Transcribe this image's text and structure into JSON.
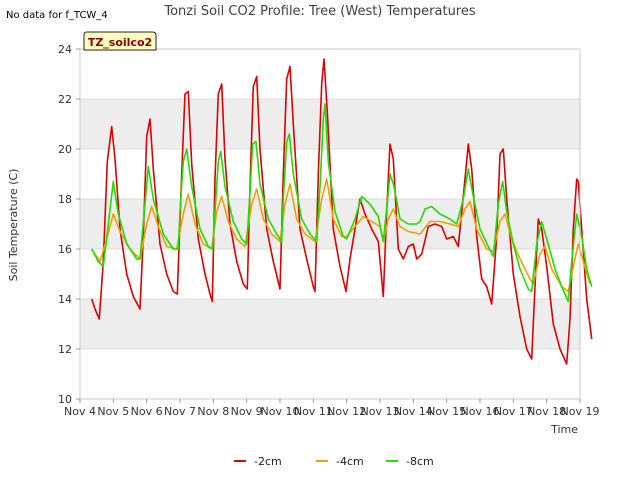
{
  "header": {
    "no_data": "No data for f_TCW_4",
    "badge": "TZ_soilco2"
  },
  "colors": {
    "band": "#ededed",
    "grid": "#dcdcdc",
    "axis": "#c8c8c8",
    "badge_fill": "#ffffc0",
    "badge_text": "#8b0000"
  },
  "chart_data": {
    "type": "line",
    "title": "Tonzi Soil CO2 Profile: Tree (West) Temperatures",
    "xlabel": "Time",
    "ylabel": "Soil Temperature (C)",
    "ylim": [
      10,
      24
    ],
    "yticks": [
      10,
      12,
      14,
      16,
      18,
      20,
      22,
      24
    ],
    "xlim": [
      4,
      19
    ],
    "xticks": [
      {
        "v": 4,
        "label": "Nov 4"
      },
      {
        "v": 5,
        "label": "Nov 5"
      },
      {
        "v": 6,
        "label": "Nov 6"
      },
      {
        "v": 7,
        "label": "Nov 7"
      },
      {
        "v": 8,
        "label": "Nov 8"
      },
      {
        "v": 9,
        "label": "Nov 9"
      },
      {
        "v": 10,
        "label": "Nov 10"
      },
      {
        "v": 11,
        "label": "Nov 11"
      },
      {
        "v": 12,
        "label": "Nov 12"
      },
      {
        "v": 13,
        "label": "Nov 13"
      },
      {
        "v": 14,
        "label": "Nov 14"
      },
      {
        "v": 15,
        "label": "Nov 15"
      },
      {
        "v": 16,
        "label": "Nov 16"
      },
      {
        "v": 17,
        "label": "Nov 17"
      },
      {
        "v": 18,
        "label": "Nov 18"
      },
      {
        "v": 19,
        "label": "Nov 19"
      }
    ],
    "grid": true,
    "legend": "bottom-center",
    "series": [
      {
        "name": "-2cm",
        "color": "#dd0000",
        "points": [
          [
            4.35,
            14.0
          ],
          [
            4.45,
            13.6
          ],
          [
            4.58,
            13.2
          ],
          [
            4.7,
            15.5
          ],
          [
            4.82,
            19.5
          ],
          [
            4.95,
            20.9
          ],
          [
            5.05,
            19.6
          ],
          [
            5.2,
            16.8
          ],
          [
            5.4,
            15.0
          ],
          [
            5.6,
            14.1
          ],
          [
            5.8,
            13.6
          ],
          [
            5.9,
            16.5
          ],
          [
            6.0,
            20.5
          ],
          [
            6.1,
            21.2
          ],
          [
            6.2,
            19.2
          ],
          [
            6.4,
            16.2
          ],
          [
            6.6,
            15.0
          ],
          [
            6.8,
            14.3
          ],
          [
            6.92,
            14.2
          ],
          [
            7.05,
            19.0
          ],
          [
            7.15,
            22.2
          ],
          [
            7.25,
            22.3
          ],
          [
            7.35,
            19.4
          ],
          [
            7.55,
            16.4
          ],
          [
            7.75,
            15.0
          ],
          [
            7.9,
            14.2
          ],
          [
            7.97,
            13.9
          ],
          [
            8.05,
            18.8
          ],
          [
            8.15,
            22.2
          ],
          [
            8.25,
            22.6
          ],
          [
            8.35,
            19.6
          ],
          [
            8.5,
            17.0
          ],
          [
            8.7,
            15.5
          ],
          [
            8.9,
            14.6
          ],
          [
            9.02,
            14.4
          ],
          [
            9.1,
            18.5
          ],
          [
            9.2,
            22.5
          ],
          [
            9.3,
            22.9
          ],
          [
            9.4,
            20.0
          ],
          [
            9.6,
            16.8
          ],
          [
            9.8,
            15.5
          ],
          [
            10.0,
            14.4
          ],
          [
            10.1,
            19.0
          ],
          [
            10.2,
            22.8
          ],
          [
            10.3,
            23.3
          ],
          [
            10.4,
            21.0
          ],
          [
            10.6,
            16.8
          ],
          [
            10.8,
            15.6
          ],
          [
            11.0,
            14.5
          ],
          [
            11.05,
            14.3
          ],
          [
            11.15,
            19.0
          ],
          [
            11.25,
            22.6
          ],
          [
            11.32,
            23.6
          ],
          [
            11.42,
            21.5
          ],
          [
            11.6,
            16.8
          ],
          [
            11.8,
            15.3
          ],
          [
            11.98,
            14.3
          ],
          [
            12.1,
            15.6
          ],
          [
            12.25,
            16.8
          ],
          [
            12.4,
            18.0
          ],
          [
            12.55,
            17.4
          ],
          [
            12.75,
            16.8
          ],
          [
            12.95,
            16.3
          ],
          [
            13.1,
            14.1
          ],
          [
            13.2,
            17.5
          ],
          [
            13.3,
            20.2
          ],
          [
            13.4,
            19.6
          ],
          [
            13.55,
            16.0
          ],
          [
            13.7,
            15.6
          ],
          [
            13.85,
            16.1
          ],
          [
            14.0,
            16.2
          ],
          [
            14.1,
            15.6
          ],
          [
            14.25,
            15.8
          ],
          [
            14.45,
            16.9
          ],
          [
            14.65,
            17.0
          ],
          [
            14.85,
            16.9
          ],
          [
            15.0,
            16.4
          ],
          [
            15.2,
            16.5
          ],
          [
            15.35,
            16.1
          ],
          [
            15.55,
            18.8
          ],
          [
            15.65,
            20.2
          ],
          [
            15.75,
            19.2
          ],
          [
            15.9,
            16.5
          ],
          [
            16.05,
            14.8
          ],
          [
            16.2,
            14.5
          ],
          [
            16.35,
            13.8
          ],
          [
            16.5,
            16.5
          ],
          [
            16.6,
            19.8
          ],
          [
            16.7,
            20.0
          ],
          [
            16.8,
            18.0
          ],
          [
            17.0,
            15.0
          ],
          [
            17.2,
            13.3
          ],
          [
            17.4,
            12.0
          ],
          [
            17.55,
            11.6
          ],
          [
            17.65,
            14.5
          ],
          [
            17.75,
            17.2
          ],
          [
            17.85,
            16.8
          ],
          [
            18.0,
            15.3
          ],
          [
            18.2,
            13.0
          ],
          [
            18.4,
            12.0
          ],
          [
            18.6,
            11.4
          ],
          [
            18.7,
            13.2
          ],
          [
            18.8,
            16.8
          ],
          [
            18.9,
            18.8
          ],
          [
            18.95,
            18.7
          ],
          [
            19.05,
            16.8
          ],
          [
            19.2,
            14.0
          ],
          [
            19.35,
            12.4
          ]
        ]
      },
      {
        "name": "-4cm",
        "color": "#f0a000",
        "points": [
          [
            4.35,
            16.0
          ],
          [
            4.6,
            15.5
          ],
          [
            4.8,
            16.4
          ],
          [
            5.0,
            17.4
          ],
          [
            5.2,
            16.7
          ],
          [
            5.5,
            16.0
          ],
          [
            5.8,
            15.6
          ],
          [
            6.0,
            17.0
          ],
          [
            6.15,
            17.7
          ],
          [
            6.35,
            16.9
          ],
          [
            6.6,
            16.1
          ],
          [
            6.9,
            16.0
          ],
          [
            7.1,
            17.4
          ],
          [
            7.25,
            18.2
          ],
          [
            7.45,
            17.0
          ],
          [
            7.7,
            16.2
          ],
          [
            7.95,
            16.0
          ],
          [
            8.1,
            17.5
          ],
          [
            8.25,
            18.1
          ],
          [
            8.45,
            17.1
          ],
          [
            8.7,
            16.4
          ],
          [
            8.95,
            16.1
          ],
          [
            9.15,
            17.8
          ],
          [
            9.3,
            18.4
          ],
          [
            9.5,
            17.2
          ],
          [
            9.75,
            16.6
          ],
          [
            10.0,
            16.3
          ],
          [
            10.15,
            17.8
          ],
          [
            10.3,
            18.6
          ],
          [
            10.5,
            17.2
          ],
          [
            10.75,
            16.6
          ],
          [
            11.05,
            16.3
          ],
          [
            11.25,
            18.0
          ],
          [
            11.4,
            18.8
          ],
          [
            11.6,
            17.2
          ],
          [
            11.85,
            16.5
          ],
          [
            12.0,
            16.5
          ],
          [
            12.25,
            16.9
          ],
          [
            12.5,
            17.3
          ],
          [
            12.75,
            17.1
          ],
          [
            13.0,
            16.9
          ],
          [
            13.1,
            16.3
          ],
          [
            13.25,
            17.2
          ],
          [
            13.4,
            17.6
          ],
          [
            13.6,
            16.9
          ],
          [
            13.85,
            16.7
          ],
          [
            14.2,
            16.6
          ],
          [
            14.5,
            17.1
          ],
          [
            14.8,
            17.1
          ],
          [
            15.1,
            17.0
          ],
          [
            15.35,
            16.9
          ],
          [
            15.55,
            17.6
          ],
          [
            15.7,
            17.9
          ],
          [
            15.9,
            16.8
          ],
          [
            16.2,
            16.0
          ],
          [
            16.4,
            15.9
          ],
          [
            16.6,
            17.1
          ],
          [
            16.75,
            17.4
          ],
          [
            16.95,
            16.4
          ],
          [
            17.2,
            15.6
          ],
          [
            17.5,
            14.8
          ],
          [
            17.6,
            14.6
          ],
          [
            17.8,
            15.8
          ],
          [
            17.95,
            16.1
          ],
          [
            18.15,
            15.2
          ],
          [
            18.45,
            14.5
          ],
          [
            18.65,
            14.3
          ],
          [
            18.8,
            15.3
          ],
          [
            18.95,
            16.2
          ],
          [
            19.1,
            15.5
          ],
          [
            19.3,
            14.6
          ]
        ]
      },
      {
        "name": "-8cm",
        "color": "#22dd00",
        "points": [
          [
            4.35,
            16.0
          ],
          [
            4.55,
            15.5
          ],
          [
            4.7,
            15.3
          ],
          [
            4.85,
            17.0
          ],
          [
            5.0,
            18.7
          ],
          [
            5.15,
            17.4
          ],
          [
            5.4,
            16.2
          ],
          [
            5.7,
            15.6
          ],
          [
            5.8,
            15.6
          ],
          [
            5.95,
            17.8
          ],
          [
            6.05,
            19.3
          ],
          [
            6.2,
            18.0
          ],
          [
            6.5,
            16.6
          ],
          [
            6.8,
            16.0
          ],
          [
            6.95,
            16.0
          ],
          [
            7.0,
            17.5
          ],
          [
            7.1,
            19.5
          ],
          [
            7.2,
            20.0
          ],
          [
            7.35,
            18.5
          ],
          [
            7.6,
            16.8
          ],
          [
            7.85,
            16.1
          ],
          [
            7.98,
            16.0
          ],
          [
            8.05,
            17.5
          ],
          [
            8.15,
            19.5
          ],
          [
            8.22,
            19.9
          ],
          [
            8.35,
            18.5
          ],
          [
            8.6,
            17.1
          ],
          [
            8.85,
            16.4
          ],
          [
            9.0,
            16.2
          ],
          [
            9.08,
            17.8
          ],
          [
            9.18,
            20.2
          ],
          [
            9.28,
            20.3
          ],
          [
            9.4,
            18.6
          ],
          [
            9.65,
            17.2
          ],
          [
            9.9,
            16.6
          ],
          [
            10.05,
            16.3
          ],
          [
            10.1,
            18.0
          ],
          [
            10.2,
            20.3
          ],
          [
            10.28,
            20.6
          ],
          [
            10.4,
            19.0
          ],
          [
            10.65,
            17.2
          ],
          [
            10.9,
            16.6
          ],
          [
            11.1,
            16.3
          ],
          [
            11.2,
            18.5
          ],
          [
            11.3,
            21.2
          ],
          [
            11.35,
            21.8
          ],
          [
            11.45,
            19.5
          ],
          [
            11.65,
            17.5
          ],
          [
            11.9,
            16.5
          ],
          [
            12.0,
            16.4
          ],
          [
            12.25,
            17.2
          ],
          [
            12.45,
            18.1
          ],
          [
            12.7,
            17.8
          ],
          [
            12.95,
            17.3
          ],
          [
            13.1,
            16.3
          ],
          [
            13.2,
            17.6
          ],
          [
            13.3,
            19.0
          ],
          [
            13.42,
            18.5
          ],
          [
            13.6,
            17.2
          ],
          [
            13.85,
            17.0
          ],
          [
            14.1,
            17.0
          ],
          [
            14.2,
            17.1
          ],
          [
            14.35,
            17.6
          ],
          [
            14.55,
            17.7
          ],
          [
            14.8,
            17.4
          ],
          [
            15.1,
            17.2
          ],
          [
            15.3,
            17.0
          ],
          [
            15.5,
            18.0
          ],
          [
            15.65,
            19.2
          ],
          [
            15.8,
            18.1
          ],
          [
            16.0,
            16.8
          ],
          [
            16.25,
            16.1
          ],
          [
            16.4,
            15.7
          ],
          [
            16.55,
            17.8
          ],
          [
            16.68,
            18.7
          ],
          [
            16.8,
            17.5
          ],
          [
            17.0,
            16.2
          ],
          [
            17.2,
            15.2
          ],
          [
            17.45,
            14.4
          ],
          [
            17.55,
            14.3
          ],
          [
            17.7,
            16.2
          ],
          [
            17.85,
            17.1
          ],
          [
            18.0,
            16.4
          ],
          [
            18.25,
            15.2
          ],
          [
            18.45,
            14.5
          ],
          [
            18.65,
            13.9
          ],
          [
            18.75,
            15.5
          ],
          [
            18.9,
            17.4
          ],
          [
            19.05,
            16.5
          ],
          [
            19.2,
            15.2
          ],
          [
            19.35,
            14.5
          ]
        ]
      }
    ]
  }
}
